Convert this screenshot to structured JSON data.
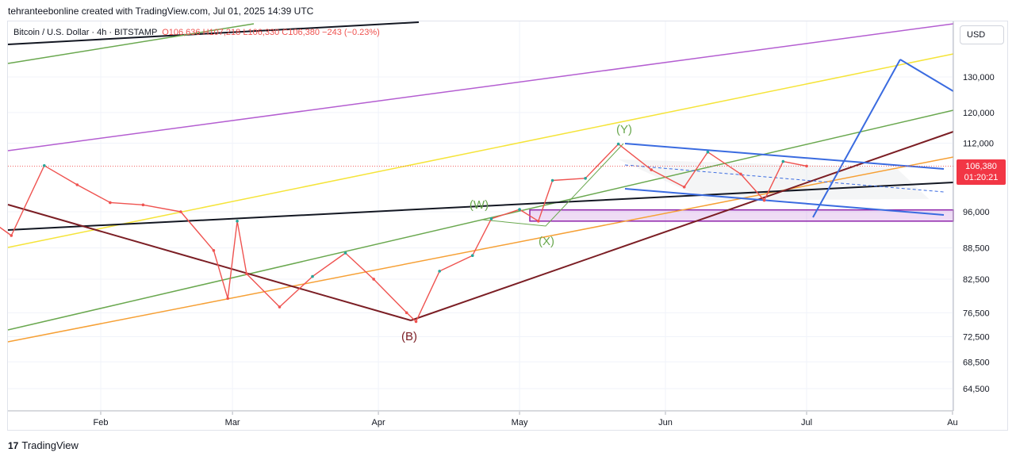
{
  "header": {
    "attribution": "tehranteebonline created with TradingView.com, Jul 01, 2025 14:39 UTC"
  },
  "legend": {
    "symbol": "Bitcoin / U.S. Dollar · 4h · BITSTAMP",
    "ohlc": "O106,636 H107,218 L106,330 C106,380 −243 (−0.23%)"
  },
  "currency_button": "USD",
  "last_price": {
    "value": "106,380",
    "countdown": "01:20:21"
  },
  "footer": {
    "brand": "TradingView",
    "brand_mark": "17"
  },
  "colors": {
    "up": "#26a69a",
    "down": "#ef5350",
    "purple": "#b45ed1",
    "yellow": "#f5e43a",
    "green": "#6aa84f",
    "orange": "#f6a035",
    "maroon": "#7b1e24",
    "black": "#131722",
    "blue": "#3a6be0"
  },
  "chart_data": {
    "type": "line",
    "title": "",
    "series": [
      {
        "values": [
          {
            "date": "2025-01-08",
            "price": 94500
          },
          {
            "date": "2025-01-13",
            "price": 91000
          },
          {
            "date": "2025-01-20",
            "price": 106500
          },
          {
            "date": "2025-01-27",
            "price": 102000
          },
          {
            "date": "2025-02-03",
            "price": 98000
          },
          {
            "date": "2025-02-10",
            "price": 97500
          },
          {
            "date": "2025-02-18",
            "price": 96000
          },
          {
            "date": "2025-02-25",
            "price": 88000
          },
          {
            "date": "2025-02-28",
            "price": 79000
          },
          {
            "date": "2025-03-02",
            "price": 94000
          },
          {
            "date": "2025-03-04",
            "price": 83500
          },
          {
            "date": "2025-03-11",
            "price": 77500
          },
          {
            "date": "2025-03-18",
            "price": 83000
          },
          {
            "date": "2025-03-25",
            "price": 87500
          },
          {
            "date": "2025-03-31",
            "price": 82500
          },
          {
            "date": "2025-04-07",
            "price": 76500
          },
          {
            "date": "2025-04-09",
            "price": 75000
          },
          {
            "date": "2025-04-14",
            "price": 84000
          },
          {
            "date": "2025-04-21",
            "price": 87000
          },
          {
            "date": "2025-04-25",
            "price": 94500
          },
          {
            "date": "2025-05-01",
            "price": 96500
          },
          {
            "date": "2025-05-05",
            "price": 94000
          },
          {
            "date": "2025-05-08",
            "price": 103000
          },
          {
            "date": "2025-05-15",
            "price": 103500
          },
          {
            "date": "2025-05-22",
            "price": 111800
          },
          {
            "date": "2025-05-29",
            "price": 105500
          },
          {
            "date": "2025-06-05",
            "price": 101500
          },
          {
            "date": "2025-06-10",
            "price": 109800
          },
          {
            "date": "2025-06-17",
            "price": 104500
          },
          {
            "date": "2025-06-22",
            "price": 98500
          },
          {
            "date": "2025-06-26",
            "price": 107500
          },
          {
            "date": "2025-07-01",
            "price": 106380
          }
        ]
      }
    ],
    "y_axis": {
      "ticks": [
        "130,000",
        "120,000",
        "112,000",
        "96,000",
        "88,500",
        "82,500",
        "76,500",
        "72,500",
        "68,500",
        "64,500"
      ],
      "scale": "log"
    },
    "x_axis": {
      "ticks": [
        "Feb",
        "Mar",
        "Apr",
        "May",
        "Jun",
        "Jul",
        "Au"
      ]
    },
    "wave_labels": [
      "(Y)",
      "(W)",
      "(X)",
      "(B)"
    ],
    "grid": true
  }
}
